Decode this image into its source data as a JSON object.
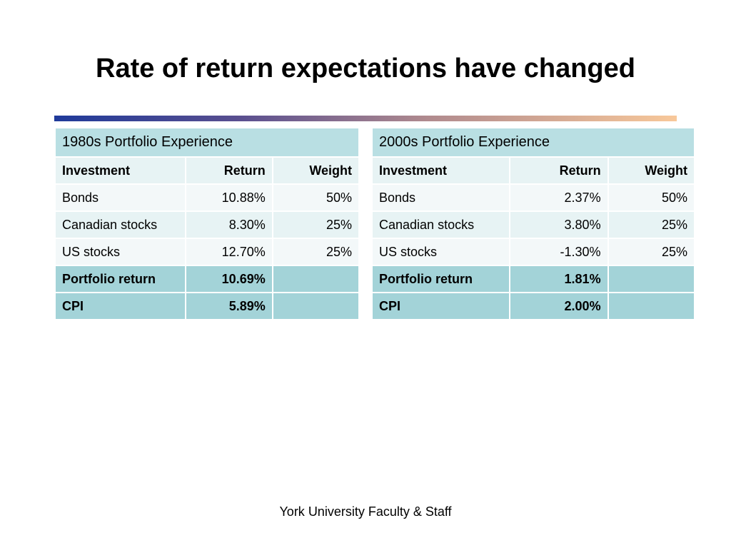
{
  "slide": {
    "title": "Rate of return expectations have changed",
    "footer": "York University Faculty & Staff"
  },
  "tables": [
    {
      "heading": "1980s Portfolio Experience",
      "columns": [
        "Investment",
        "Return",
        "Weight"
      ],
      "rows": [
        [
          "Bonds",
          "10.88%",
          "50%"
        ],
        [
          "Canadian stocks",
          "8.30%",
          "25%"
        ],
        [
          "US stocks",
          "12.70%",
          "25%"
        ]
      ],
      "summary": [
        [
          "Portfolio return",
          "10.69%",
          ""
        ],
        [
          "CPI",
          "5.89%",
          ""
        ]
      ]
    },
    {
      "heading": "2000s Portfolio Experience",
      "columns": [
        "Investment",
        "Return",
        "Weight"
      ],
      "rows": [
        [
          "Bonds",
          "2.37%",
          "50%"
        ],
        [
          "Canadian stocks",
          "3.80%",
          "25%"
        ],
        [
          "US stocks",
          "-1.30%",
          "25%"
        ]
      ],
      "summary": [
        [
          "Portfolio return",
          "1.81%",
          ""
        ],
        [
          "CPI",
          "2.00%",
          ""
        ]
      ]
    }
  ],
  "colors": {
    "header_fill": "#b9dfe3",
    "summary_fill": "#a3d3d8",
    "light_fill": "#e7f3f4",
    "lighter_fill": "#f3f8f9",
    "bar_start": "#1f3a9a",
    "bar_end": "#f8c89a"
  }
}
